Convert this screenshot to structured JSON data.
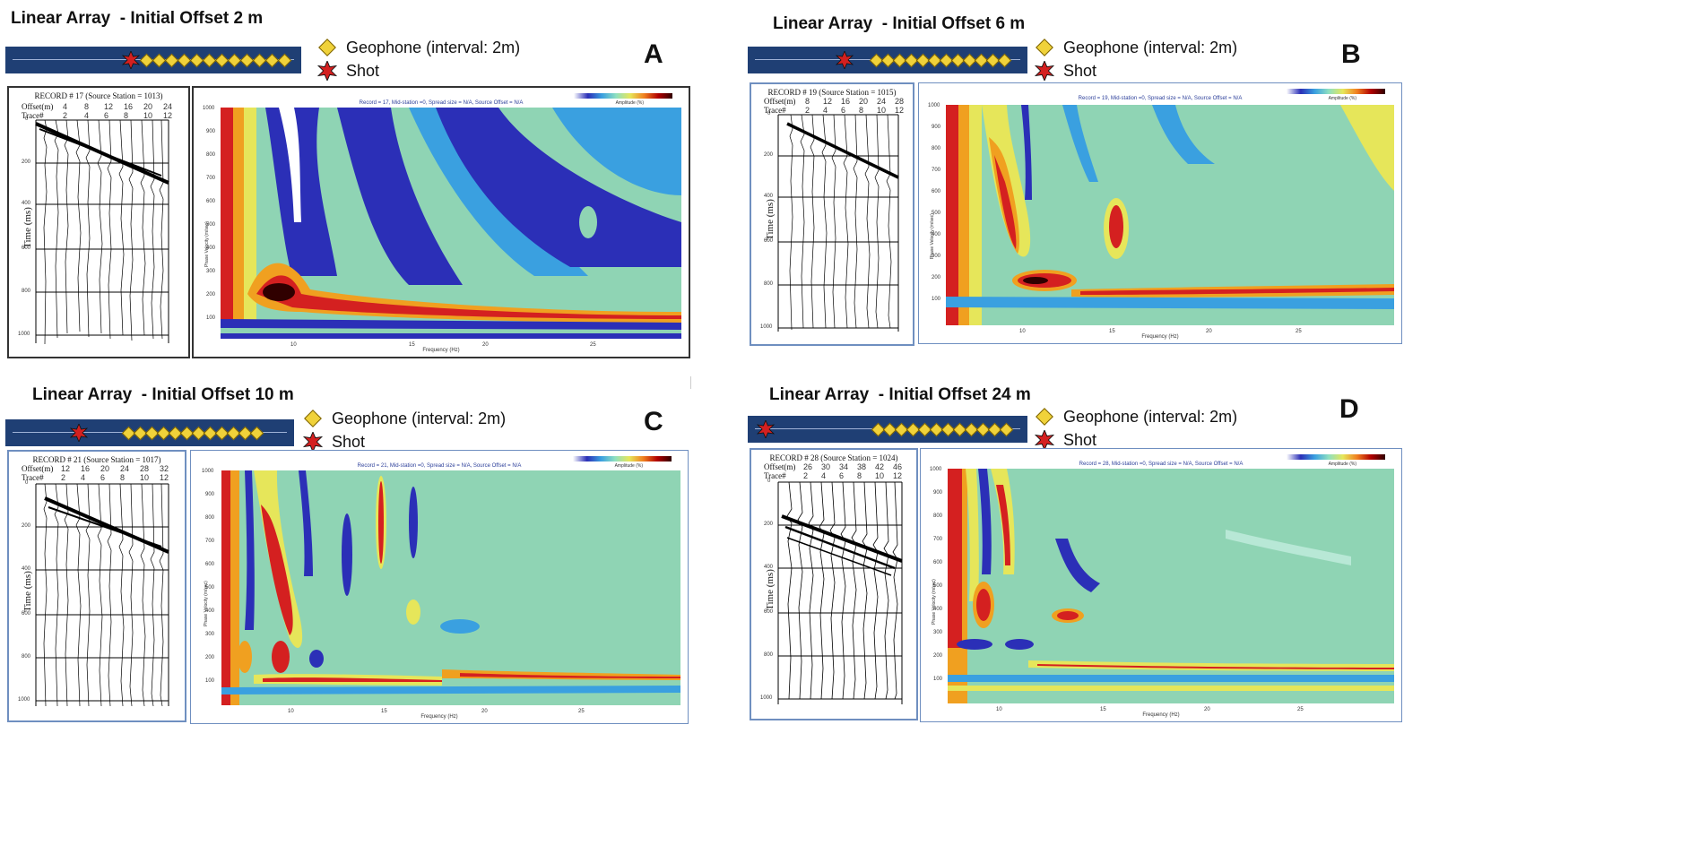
{
  "legend": {
    "geophone": "Geophone (interval: 2m)",
    "shot": "Shot"
  },
  "colors": {
    "bar": "#1f3f74",
    "geophone": "#f0d23a",
    "shot": "#d42020"
  },
  "panels": [
    {
      "letter": "A",
      "title": "Linear Array  - Initial Offset 2 m",
      "record_header": "RECORD # 17 (Source Station = 1013)",
      "offset_label": "Offset(m)",
      "trace_label": "Trace#",
      "offsets": [
        "4",
        "8",
        "12",
        "16",
        "20",
        "24"
      ],
      "traces": [
        "2",
        "4",
        "6",
        "8",
        "10",
        "12"
      ],
      "time_axis_label": "Time (ms)",
      "time_ticks": [
        "0",
        "200",
        "400",
        "600",
        "800",
        "1000"
      ],
      "spectrum_title": "Record = 17, Mid-station =0, Spread size = N/A, Source Offset = N/A",
      "freq_label": "Frequency (Hz)",
      "phase_label": "Phase Velocity (m/sec)",
      "freq_ticks": [
        "10",
        "15",
        "20",
        "25"
      ],
      "vel_ticks": [
        "1000",
        "900",
        "800",
        "700",
        "600",
        "500",
        "400",
        "300",
        "200",
        "100"
      ],
      "colorbar_label": "Amplitude (%)"
    },
    {
      "letter": "B",
      "title": "Linear Array  - Initial Offset 6 m",
      "record_header": "RECORD # 19 (Source Station = 1015)",
      "offset_label": "Offset(m)",
      "trace_label": "Trace#",
      "offsets": [
        "8",
        "12",
        "16",
        "20",
        "24",
        "28"
      ],
      "traces": [
        "2",
        "4",
        "6",
        "8",
        "10",
        "12"
      ],
      "time_axis_label": "Time (ms)",
      "time_ticks": [
        "0",
        "200",
        "400",
        "600",
        "800",
        "1000"
      ],
      "spectrum_title": "Record = 19, Mid-station =0, Spread size = N/A, Source Offset = N/A",
      "freq_label": "Frequency (Hz)",
      "phase_label": "Phase Velocity (m/sec)",
      "freq_ticks": [
        "10",
        "15",
        "20",
        "25"
      ],
      "vel_ticks": [
        "1000",
        "900",
        "800",
        "700",
        "600",
        "500",
        "400",
        "300",
        "200",
        "100"
      ],
      "colorbar_label": "Amplitude (%)"
    },
    {
      "letter": "C",
      "title": "Linear Array  - Initial Offset 10 m",
      "record_header": "RECORD # 21 (Source Station = 1017)",
      "offset_label": "Offset(m)",
      "trace_label": "Trace#",
      "offsets": [
        "12",
        "16",
        "20",
        "24",
        "28",
        "32"
      ],
      "traces": [
        "2",
        "4",
        "6",
        "8",
        "10",
        "12"
      ],
      "time_axis_label": "Time (ms)",
      "time_ticks": [
        "0",
        "200",
        "400",
        "600",
        "800",
        "1000"
      ],
      "spectrum_title": "Record = 21, Mid-station =0, Spread size = N/A, Source Offset = N/A",
      "freq_label": "Frequency (Hz)",
      "phase_label": "Phase Velocity (m/sec)",
      "freq_ticks": [
        "10",
        "15",
        "20",
        "25"
      ],
      "vel_ticks": [
        "1000",
        "900",
        "800",
        "700",
        "600",
        "500",
        "400",
        "300",
        "200",
        "100"
      ],
      "colorbar_label": "Amplitude (%)"
    },
    {
      "letter": "D",
      "title": "Linear Array  - Initial Offset 24 m",
      "record_header": "RECORD # 28 (Source Station = 1024)",
      "offset_label": "Offset(m)",
      "trace_label": "Trace#",
      "offsets": [
        "26",
        "30",
        "34",
        "38",
        "42",
        "46"
      ],
      "traces": [
        "2",
        "4",
        "6",
        "8",
        "10",
        "12"
      ],
      "time_axis_label": "Time (ms)",
      "time_ticks": [
        "0",
        "200",
        "400",
        "600",
        "800",
        "1000"
      ],
      "spectrum_title": "Record = 28, Mid-station =0, Spread size = N/A, Source Offset = N/A",
      "freq_label": "Frequency (Hz)",
      "phase_label": "Phase Velocity (m/sec)",
      "freq_ticks": [
        "10",
        "15",
        "20",
        "25"
      ],
      "vel_ticks": [
        "1000",
        "900",
        "800",
        "700",
        "600",
        "500",
        "400",
        "300",
        "200",
        "100"
      ],
      "colorbar_label": "Amplitude (%)"
    }
  ]
}
